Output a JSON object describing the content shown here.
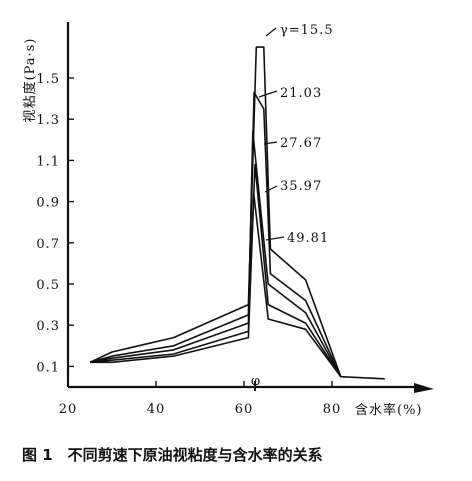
{
  "chart_data": {
    "type": "line",
    "caption": "图 1　不同剪速下原油视粘度与含水率的关系",
    "xlabel": "含水率(%)",
    "ylabel": "视粘度(Pa·s)",
    "xlim": [
      18,
      100
    ],
    "ylim": [
      0,
      1.8
    ],
    "xticks": [
      20,
      40,
      60,
      80
    ],
    "yticks": [
      0.1,
      0.3,
      0.5,
      0.7,
      0.9,
      1.1,
      1.3,
      1.5
    ],
    "ytick_labels": [
      "0.1",
      "0.3",
      "0.5",
      "0.7",
      "0.9",
      "1.1",
      "1.3",
      "1.5"
    ],
    "phi_label": "φ",
    "phi_x": 62.5,
    "grid": false,
    "series": [
      {
        "name": "γ=15.5",
        "x": [
          25,
          30,
          44,
          61,
          62.8,
          64.5,
          66,
          74,
          82,
          92
        ],
        "y": [
          0.12,
          0.17,
          0.24,
          0.4,
          1.65,
          1.65,
          0.67,
          0.52,
          0.05,
          0.04
        ]
      },
      {
        "name": "21.03",
        "x": [
          25,
          30,
          44,
          61,
          62.3,
          64.5,
          66,
          74,
          82
        ],
        "y": [
          0.12,
          0.15,
          0.2,
          0.35,
          1.43,
          1.35,
          0.55,
          0.42,
          0.05
        ]
      },
      {
        "name": "27.67",
        "x": [
          25,
          30,
          44,
          61,
          62,
          65.5,
          74,
          82
        ],
        "y": [
          0.12,
          0.14,
          0.18,
          0.31,
          1.24,
          0.5,
          0.36,
          0.05
        ]
      },
      {
        "name": "35.97",
        "x": [
          25,
          30,
          44,
          61,
          62.5,
          65.5,
          74,
          82
        ],
        "y": [
          0.12,
          0.13,
          0.16,
          0.27,
          1.08,
          0.4,
          0.31,
          0.05
        ]
      },
      {
        "name": "49.81",
        "x": [
          25,
          30,
          44,
          61,
          62.2,
          65.5,
          74,
          82
        ],
        "y": [
          0.12,
          0.12,
          0.15,
          0.24,
          0.94,
          0.33,
          0.28,
          0.05
        ]
      }
    ]
  }
}
